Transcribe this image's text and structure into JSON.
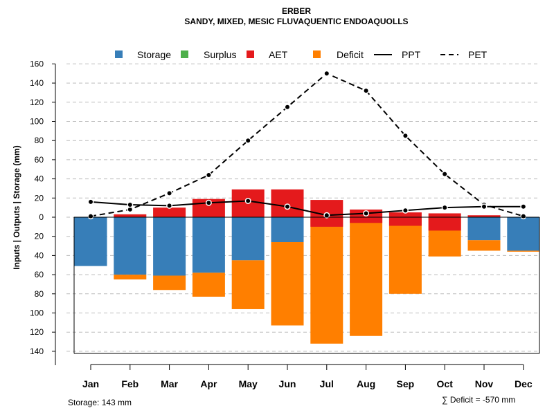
{
  "chart_data": {
    "type": "bar",
    "title": "ERBER",
    "subtitle": "SANDY, MIXED, MESIC FLUVAQUENTIC ENDOAQUOLLS",
    "ylabel": "Inputs | Outputs | Storage    (mm)",
    "ylim": [
      -143,
      160
    ],
    "yticks": [
      160,
      140,
      120,
      100,
      80,
      60,
      40,
      20,
      0,
      -20,
      -40,
      -60,
      -80,
      -100,
      -120,
      -140
    ],
    "ytick_labels": [
      "160",
      "140",
      "120",
      "100",
      "80",
      "60",
      "40",
      "20",
      "0",
      "20",
      "40",
      "60",
      "80",
      "100",
      "120",
      "140"
    ],
    "grid": true,
    "categories": [
      "Jan",
      "Feb",
      "Mar",
      "Apr",
      "May",
      "Jun",
      "Jul",
      "Aug",
      "Sep",
      "Oct",
      "Nov",
      "Dec"
    ],
    "series": [
      {
        "name": "Storage",
        "color": "#377EB8",
        "values": [
          -51,
          -60,
          -61,
          -58,
          -45,
          -26,
          0,
          0,
          0,
          0,
          -24,
          -35
        ]
      },
      {
        "name": "Surplus",
        "color": "#4DAF4A",
        "values": [
          0,
          0,
          0,
          0,
          0,
          0,
          0,
          0,
          0,
          0,
          0,
          0
        ]
      },
      {
        "name": "AET",
        "color": "#E41A1C",
        "values": [
          0,
          3,
          10,
          19,
          29,
          29,
          18,
          8,
          5,
          4,
          2,
          0
        ]
      },
      {
        "name": "Deficit",
        "color": "#FF7F00",
        "values": [
          0,
          -5,
          -15,
          -25,
          -51,
          -87,
          -132,
          -124,
          -80,
          -41,
          -11,
          -1
        ]
      },
      {
        "name": "PPT",
        "color": "#000000",
        "line": "solid",
        "values": [
          16,
          13,
          12,
          15,
          17,
          11,
          2,
          4,
          7,
          10,
          11,
          11
        ]
      },
      {
        "name": "PET",
        "color": "#000000",
        "line": "dashed",
        "values": [
          1,
          8,
          25,
          44,
          80,
          115,
          150,
          132,
          85,
          45,
          13,
          1
        ]
      }
    ],
    "aet_offsets": [
      0,
      0,
      0,
      0,
      0,
      0,
      -10,
      -6,
      -9,
      -14,
      0,
      0
    ],
    "legend_position": "top",
    "storage_note": "Storage: 143 mm",
    "deficit_note": "∑ Deficit = -570 mm"
  }
}
